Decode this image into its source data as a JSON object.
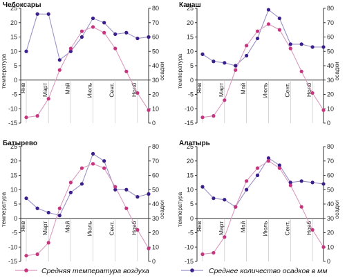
{
  "chart_data": [
    {
      "type": "line",
      "title": "Чебоксары",
      "ylabel_left": "температура",
      "ylabel_right": "осадки",
      "ylim_left": [
        -15,
        25
      ],
      "ylim_right": [
        0,
        80
      ],
      "yticks_left": [
        "-15",
        "-10",
        "-5",
        "0",
        "5",
        "10",
        "15",
        "20",
        "25"
      ],
      "yticks_right": [
        "0",
        "10",
        "20",
        "30",
        "40",
        "50",
        "60",
        "70",
        "80"
      ],
      "month_labels": [
        "Янв",
        "Март",
        "Май",
        "Июль",
        "Сент.",
        "Нояб"
      ],
      "series": [
        {
          "name": "Средняя температура воздуха",
          "values": [
            -13,
            -12.5,
            -6.5,
            3.5,
            11,
            17,
            18.5,
            16.5,
            11,
            3,
            -4.5,
            -10.5
          ]
        },
        {
          "name": "Среднее количество осадков в мм",
          "values": [
            50,
            76,
            76,
            44,
            50,
            60,
            73,
            70,
            62,
            63,
            59,
            60
          ]
        }
      ]
    },
    {
      "type": "line",
      "title": "Канаш",
      "ylabel_left": "температура",
      "ylabel_right": "осадки",
      "ylim_left": [
        -15,
        25
      ],
      "ylim_right": [
        0,
        80
      ],
      "yticks_left": [
        "-15",
        "-10",
        "-5",
        "0",
        "5",
        "10",
        "15",
        "20",
        "25"
      ],
      "yticks_right": [
        "0",
        "10",
        "20",
        "30",
        "40",
        "50",
        "60",
        "70",
        "80"
      ],
      "month_labels": [
        "Янв",
        "Март",
        "Май",
        "Июль",
        "Сент.",
        "Нояб"
      ],
      "series": [
        {
          "name": "Средняя температура воздуха",
          "values": [
            -13,
            -12.5,
            -7,
            3.5,
            12,
            17,
            19.5,
            17.5,
            11,
            3,
            -4.5,
            -10.5
          ]
        },
        {
          "name": "Среднее количество осадков в мм",
          "values": [
            48,
            43,
            42,
            40,
            47,
            59,
            79,
            73,
            55,
            55,
            53,
            53
          ]
        }
      ]
    },
    {
      "type": "line",
      "title": "Батырево",
      "ylabel_left": "температура",
      "ylabel_right": "осадки",
      "ylim_left": [
        -15,
        25
      ],
      "ylim_right": [
        0,
        80
      ],
      "yticks_left": [
        "-15",
        "-10",
        "-5",
        "0",
        "5",
        "10",
        "15",
        "20",
        "25"
      ],
      "yticks_right": [
        "0",
        "10",
        "20",
        "30",
        "40",
        "50",
        "60",
        "70",
        "80"
      ],
      "month_labels": [
        "Янв",
        "Март",
        "Май",
        "Июль",
        "Сент.",
        "Нояб"
      ],
      "series": [
        {
          "name": "Средняя температура воздуха",
          "values": [
            -13,
            -12.5,
            -8.5,
            3.5,
            12.5,
            17.5,
            19,
            17.5,
            11,
            3.5,
            -4,
            -10.5
          ]
        },
        {
          "name": "Среднее количество осадков в мм",
          "values": [
            44,
            37,
            34,
            32,
            48,
            54,
            75,
            70,
            50,
            50,
            45,
            47
          ]
        }
      ]
    },
    {
      "type": "line",
      "title": "Алатырь",
      "ylabel_left": "температура",
      "ylabel_right": "осадки",
      "ylim_left": [
        -15,
        25
      ],
      "ylim_right": [
        0,
        80
      ],
      "yticks_left": [
        "-15",
        "-10",
        "-5",
        "0",
        "5",
        "10",
        "15",
        "20",
        "25"
      ],
      "yticks_right": [
        "0",
        "10",
        "20",
        "30",
        "40",
        "50",
        "60",
        "70",
        "80"
      ],
      "month_labels": [
        "Янв",
        "Март",
        "Май",
        "Июль",
        "Сент.",
        "Нояб"
      ],
      "series": [
        {
          "name": "Средняя температура воздуха",
          "values": [
            -12.5,
            -12,
            -6.5,
            4,
            13,
            17.5,
            20,
            17.5,
            11.5,
            4,
            -4,
            -10
          ]
        },
        {
          "name": "Среднее количество осадков в мм",
          "values": [
            52,
            44,
            43,
            38,
            50,
            60,
            72,
            67,
            55,
            56,
            55,
            54
          ]
        }
      ]
    }
  ],
  "legend": {
    "temperature_label": "Средняя температура воздуха",
    "precipitation_label": "Среднее количество осадков в мм"
  },
  "colors": {
    "temperature": "#c4367e",
    "temperature_line": "#d99bbd",
    "precipitation": "#3b1f8a",
    "precipitation_line": "#9a92c6",
    "axis": "#333333",
    "grid": "#bdbdbd"
  }
}
